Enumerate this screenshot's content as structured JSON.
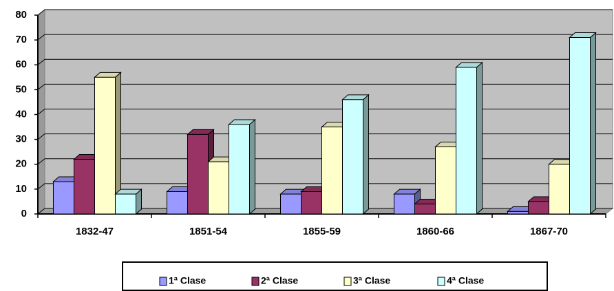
{
  "chart_data": {
    "type": "bar",
    "categories": [
      "1832-47",
      "1851-54",
      "1855-59",
      "1860-66",
      "1867-70"
    ],
    "series": [
      {
        "name": "1ª Clase",
        "color": "#9999ff",
        "values": [
          13,
          9,
          8,
          8,
          1
        ]
      },
      {
        "name": "2ª Clase",
        "color": "#993366",
        "values": [
          22,
          32,
          9,
          4,
          5
        ]
      },
      {
        "name": "3ª Clase",
        "color": "#ffffcc",
        "values": [
          55,
          21,
          35,
          27,
          20
        ]
      },
      {
        "name": "4ª Clase",
        "color": "#ccffff",
        "values": [
          8,
          36,
          46,
          59,
          71
        ]
      }
    ],
    "ylim": [
      0,
      80
    ],
    "yticks": [
      0,
      10,
      20,
      30,
      40,
      50,
      60,
      70,
      80
    ],
    "grid": true,
    "legend": "bottom"
  }
}
